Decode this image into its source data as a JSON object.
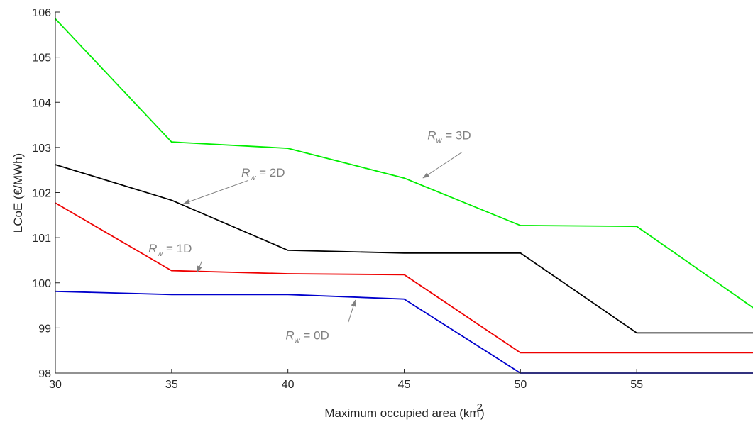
{
  "chart_data": {
    "type": "line",
    "xlabel": "Maximum occupied area (km",
    "xlabel_sup": "2",
    "xlabel_suffix": ")",
    "ylabel": "LCoE (€/MWh)",
    "xlim": [
      30,
      60
    ],
    "ylim": [
      98,
      106
    ],
    "xticks": [
      30,
      35,
      40,
      45,
      50,
      55
    ],
    "yticks": [
      98,
      99,
      100,
      101,
      102,
      103,
      104,
      105,
      106
    ],
    "grid": false,
    "x": [
      30,
      35,
      40,
      45,
      50,
      55,
      60
    ],
    "series": [
      {
        "color": "#00ee00",
        "values": [
          105.85,
          103.12,
          102.98,
          102.32,
          101.27,
          101.25,
          99.45
        ]
      },
      {
        "color": "#000000",
        "values": [
          102.62,
          101.83,
          100.72,
          100.66,
          100.66,
          98.89,
          98.89
        ]
      },
      {
        "color": "#ee0000",
        "values": [
          101.77,
          100.27,
          100.2,
          100.18,
          98.45,
          98.45,
          98.45
        ]
      },
      {
        "color": "#0000cc",
        "values": [
          99.81,
          99.74,
          99.74,
          99.64,
          98.0,
          98.0,
          98.0
        ]
      }
    ],
    "annotations": [
      {
        "main": "R",
        "sub": "w",
        "rest": " = 3D",
        "text_at": [
          46.0,
          103.18
        ],
        "arrow_from": [
          47.5,
          102.9
        ],
        "arrow_to": [
          45.8,
          102.32
        ]
      },
      {
        "main": "R",
        "sub": "w",
        "rest": " = 2D",
        "text_at": [
          38.0,
          102.35
        ],
        "arrow_from": [
          38.3,
          102.27
        ],
        "arrow_to": [
          35.5,
          101.75
        ]
      },
      {
        "main": "R",
        "sub": "w",
        "rest": " = 1D",
        "text_at": [
          34.0,
          100.67
        ],
        "arrow_from": [
          36.3,
          100.48
        ],
        "arrow_to": [
          36.1,
          100.23
        ]
      },
      {
        "main": "R",
        "sub": "w",
        "rest": " = 0D",
        "text_at": [
          39.9,
          98.75
        ],
        "arrow_from": [
          42.6,
          99.13
        ],
        "arrow_to": [
          42.9,
          99.62
        ]
      }
    ]
  }
}
